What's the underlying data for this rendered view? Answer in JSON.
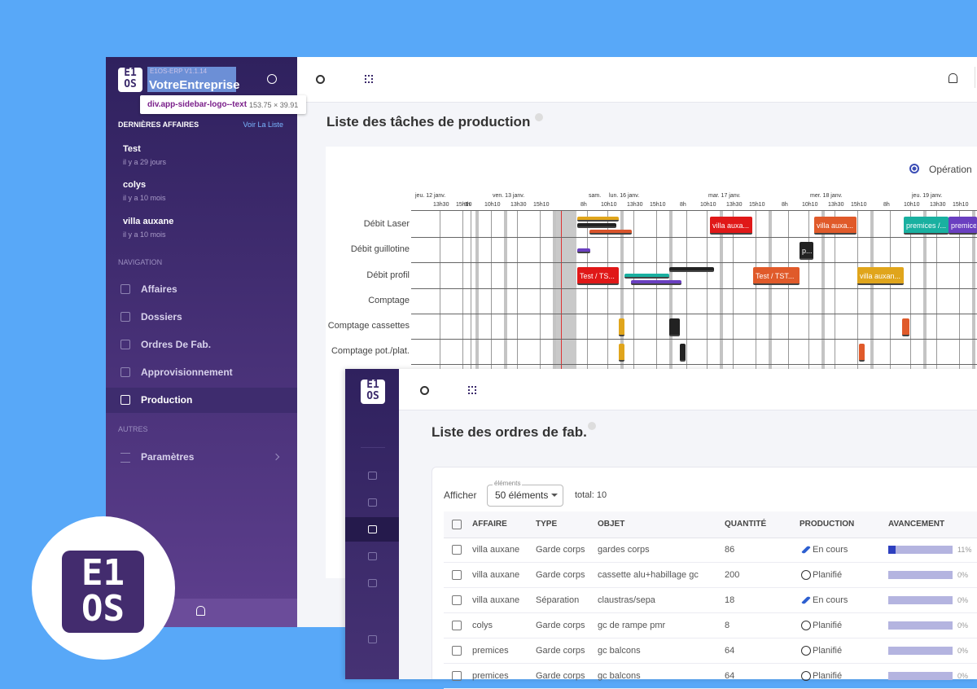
{
  "sidebar": {
    "logo_top": "E1",
    "logo_bottom": "OS",
    "version": "E1OS-ERP V1.1.14",
    "company": "VotreEntreprise",
    "tooltip": {
      "selector": "div.app-sidebar-logo--text",
      "size": "153.75 × 39.91"
    },
    "recent_heading": "DERNIÈRES AFFAIRES",
    "recent_link": "Voir La Liste",
    "recent": [
      {
        "name": "Test",
        "time": "il y a 29 jours"
      },
      {
        "name": "colys",
        "time": "il y a 10 mois"
      },
      {
        "name": "villa auxane",
        "time": "il y a 10 mois"
      }
    ],
    "nav_heading": "NAVIGATION",
    "nav": [
      "Affaires",
      "Dossiers",
      "Ordres De Fab.",
      "Approvisionnement",
      "Production"
    ],
    "other_heading": "AUTRES",
    "other": [
      "Paramètres"
    ]
  },
  "production": {
    "title": "Liste des tâches de production",
    "view_option": "Opération",
    "days": [
      {
        "label": "jeu. 12 janv.",
        "times": [
          "13h30",
          "15h10"
        ]
      },
      {
        "label": "ven. 13 janv.",
        "times": [
          "8h",
          "10h10",
          "13h30",
          "15h10"
        ]
      },
      {
        "label": "sam.",
        "times": []
      },
      {
        "label": "lun. 16 janv.",
        "times": [
          "8h",
          "10h10",
          "13h30",
          "15h10"
        ]
      },
      {
        "label": "mar. 17 janv.",
        "times": [
          "8h",
          "10h10",
          "13h30",
          "15h10"
        ]
      },
      {
        "label": "mer. 18 janv.",
        "times": [
          "8h",
          "10h10",
          "13h30",
          "15h10"
        ]
      },
      {
        "label": "jeu. 19 janv.",
        "times": [
          "8h",
          "10h10",
          "13h30",
          "15h10"
        ]
      }
    ],
    "rows": [
      "Débit Laser",
      "Débit guillotine",
      "Débit profil",
      "Comptage",
      "Comptage cassettes",
      "Comptage pot./plat."
    ],
    "tasks": [
      "villa auxa...",
      "villa auxa...",
      "premices /...",
      "premices",
      "p...",
      "Test / TS...",
      "Test / TST...",
      "villa auxan..."
    ]
  },
  "orders": {
    "title": "Liste des ordres de fab.",
    "show_label": "Afficher",
    "select_caption": "éléments",
    "select_value": "50 éléments",
    "total": "total: 10",
    "columns": [
      "AFFAIRE",
      "TYPE",
      "OBJET",
      "QUANTITÉ",
      "PRODUCTION",
      "AVANCEMENT"
    ],
    "rows": [
      {
        "cells": [
          "villa auxane",
          "Garde corps",
          "gardes corps",
          "86"
        ],
        "status": "En cours",
        "progress": 11,
        "progress_label": "11%"
      },
      {
        "cells": [
          "villa auxane",
          "Garde corps",
          "cassette alu+habillage gc",
          "200"
        ],
        "status": "Planifié",
        "progress": 0,
        "progress_label": "0%"
      },
      {
        "cells": [
          "villa auxane",
          "Séparation",
          "claustras/sepa",
          "18"
        ],
        "status": "En cours",
        "progress": 0,
        "progress_label": "0%"
      },
      {
        "cells": [
          "colys",
          "Garde corps",
          "gc de rampe pmr",
          "8"
        ],
        "status": "Planifié",
        "progress": 0,
        "progress_label": "0%"
      },
      {
        "cells": [
          "premices",
          "Garde corps",
          "gc balcons",
          "64"
        ],
        "status": "Planifié",
        "progress": 0,
        "progress_label": "0%"
      },
      {
        "cells": [
          "premices",
          "Garde corps",
          "gc balcons",
          "64"
        ],
        "status": "Planifié",
        "progress": 0,
        "progress_label": "0%"
      }
    ]
  }
}
